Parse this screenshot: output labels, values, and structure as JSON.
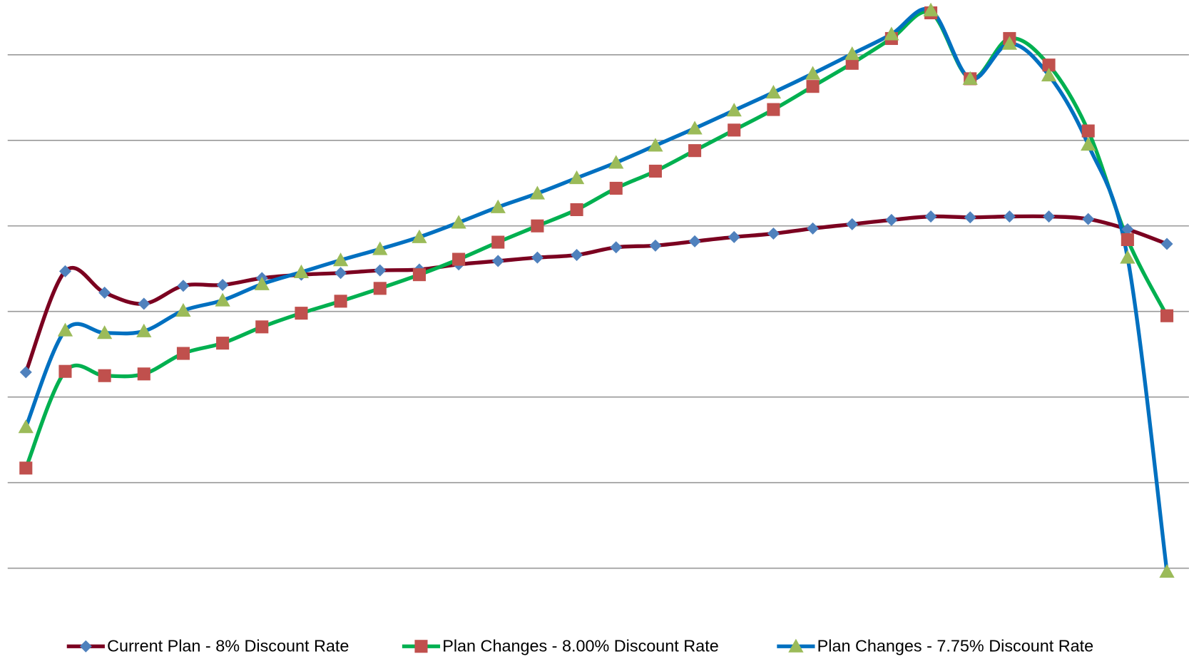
{
  "chart_data": {
    "type": "line",
    "categories": [
      null,
      null,
      null,
      null,
      null,
      null,
      null,
      null,
      null,
      null,
      null,
      null,
      null,
      null,
      null,
      null,
      null,
      null,
      null,
      null,
      null,
      null,
      null,
      null,
      null,
      null,
      null,
      null,
      null,
      null
    ],
    "series": [
      {
        "name": "Current Plan - 8% Discount Rate",
        "color": "#7b0020",
        "marker": "diamond",
        "marker_color": "#4f81bd",
        "values": [
          2.29,
          3.47,
          3.22,
          3.09,
          3.3,
          3.31,
          3.39,
          3.43,
          3.45,
          3.48,
          3.49,
          3.55,
          3.59,
          3.63,
          3.66,
          3.75,
          3.77,
          3.82,
          3.87,
          3.91,
          3.97,
          4.02,
          4.07,
          4.11,
          4.1,
          4.11,
          4.11,
          4.08,
          3.96,
          3.79
        ]
      },
      {
        "name": "Plan Changes - 8.00% Discount Rate",
        "color": "#00b050",
        "marker": "square",
        "marker_color": "#c0504d",
        "values": [
          1.17,
          2.3,
          2.25,
          2.27,
          2.51,
          2.63,
          2.82,
          2.98,
          3.12,
          3.27,
          3.43,
          3.61,
          3.81,
          4.0,
          4.19,
          4.44,
          4.64,
          4.88,
          5.12,
          5.36,
          5.63,
          5.9,
          6.19,
          6.49,
          5.72,
          6.19,
          5.88,
          5.11,
          3.84,
          2.95
        ]
      },
      {
        "name": "Plan Changes - 7.75% Discount Rate",
        "color": "#0070c0",
        "marker": "triangle",
        "marker_color": "#9bbb59",
        "values": [
          1.65,
          2.78,
          2.75,
          2.77,
          3.01,
          3.13,
          3.32,
          3.46,
          3.6,
          3.73,
          3.87,
          4.04,
          4.22,
          4.38,
          4.56,
          4.74,
          4.94,
          5.14,
          5.35,
          5.56,
          5.78,
          6.01,
          6.24,
          6.52,
          5.72,
          6.13,
          5.76,
          4.95,
          3.63,
          -0.04
        ]
      }
    ],
    "ylim": [
      -0.5,
      6.64
    ],
    "yticks": [
      0,
      1,
      2,
      3,
      4,
      5,
      6
    ],
    "grid": true,
    "smooth": true,
    "legend": "bottom"
  }
}
